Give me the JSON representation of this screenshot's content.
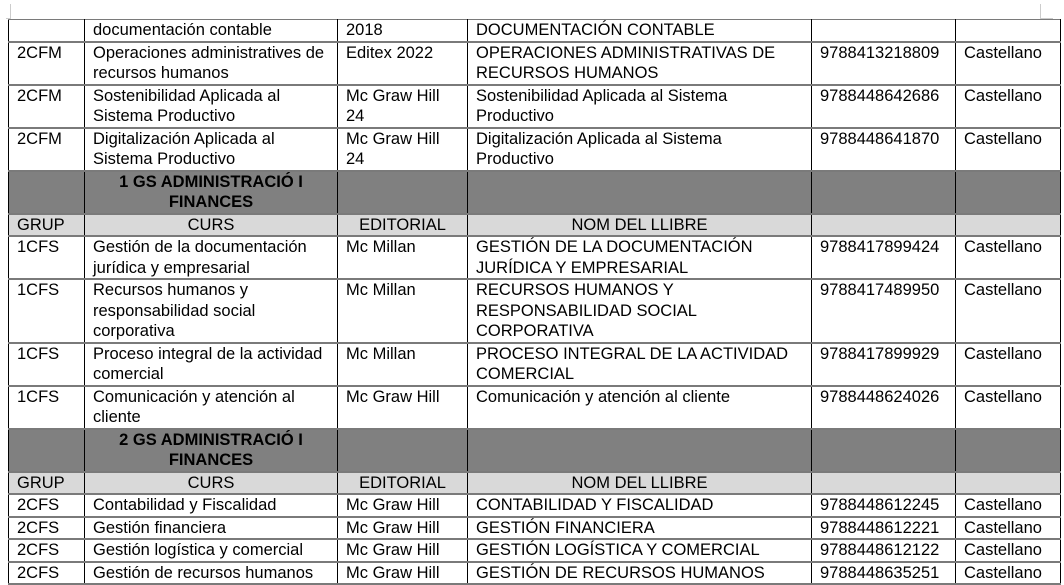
{
  "table": {
    "rows": [
      {
        "type": "data",
        "cells": [
          "",
          "documentación contable",
          "2018",
          "DOCUMENTACIÓN CONTABLE",
          "",
          ""
        ]
      },
      {
        "type": "data",
        "cells": [
          "2CFM",
          "Operaciones administratives de recursos humanos",
          "Editex 2022",
          "OPERACIONES ADMINISTRATIVAS DE RECURSOS HUMANOS",
          "9788413218809",
          "Castellano"
        ]
      },
      {
        "type": "data",
        "cells": [
          "2CFM",
          "Sostenibilidad Aplicada al Sistema Productivo",
          "Mc Graw Hill 24",
          "Sostenibilidad Aplicada al Sistema Productivo",
          "9788448642686",
          "Castellano"
        ]
      },
      {
        "type": "data",
        "cells": [
          "2CFM",
          "Digitalización Aplicada al Sistema Productivo",
          "Mc Graw Hill 24",
          "Digitalización Aplicada al Sistema Productivo",
          "9788448641870",
          "Castellano"
        ]
      },
      {
        "type": "section",
        "cells": [
          "",
          "1 GS ADMINISTRACIÓ I FINANCES",
          "",
          "",
          "",
          ""
        ]
      },
      {
        "type": "hdr",
        "cells": [
          "GRUP",
          "CURS",
          "EDITORIAL",
          "NOM DEL LLIBRE",
          "",
          ""
        ]
      },
      {
        "type": "data",
        "cells": [
          "1CFS",
          "Gestión de la documentación jurídica y empresarial",
          "Mc Millan",
          "GESTIÓN DE LA DOCUMENTACIÓN JURÍDICA Y EMPRESARIAL",
          "9788417899424",
          "Castellano"
        ]
      },
      {
        "type": "data",
        "cells": [
          "1CFS",
          "Recursos humanos y responsabilidad social corporativa",
          "Mc Millan",
          "RECURSOS HUMANOS Y RESPONSABILIDAD SOCIAL CORPORATIVA",
          "9788417489950",
          "Castellano"
        ]
      },
      {
        "type": "data",
        "cells": [
          "1CFS",
          "Proceso integral de la actividad comercial",
          "Mc Millan",
          "PROCESO INTEGRAL DE LA ACTIVIDAD COMERCIAL",
          "9788417899929",
          "Castellano"
        ]
      },
      {
        "type": "data",
        "cells": [
          "1CFS",
          "Comunicación y atención al cliente",
          "Mc Graw Hill",
          "Comunicación y atención al cliente",
          "9788448624026",
          "Castellano"
        ]
      },
      {
        "type": "section",
        "cells": [
          "",
          "2 GS ADMINISTRACIÓ I FINANCES",
          "",
          "",
          "",
          ""
        ]
      },
      {
        "type": "hdr",
        "cells": [
          "GRUP",
          "CURS",
          "EDITORIAL",
          "NOM DEL LLIBRE",
          "",
          ""
        ]
      },
      {
        "type": "data",
        "cells": [
          "2CFS",
          "Contabilidad y Fiscalidad",
          "Mc Graw Hill",
          "CONTABILIDAD Y FISCALIDAD",
          "9788448612245",
          "Castellano"
        ]
      },
      {
        "type": "data",
        "cells": [
          "2CFS",
          "Gestión financiera",
          "Mc Graw Hill",
          "GESTIÓN FINANCIERA",
          "9788448612221",
          "Castellano"
        ]
      },
      {
        "type": "data",
        "cells": [
          "2CFS",
          "Gestión logística y comercial",
          "Mc Graw Hill",
          "GESTIÓN LOGÍSTICA Y COMERCIAL",
          "9788448612122",
          "Castellano"
        ]
      },
      {
        "type": "data",
        "cells": [
          "2CFS",
          "Gestión de recursos humanos",
          "Mc Graw Hill",
          "GESTIÓN DE RECURSOS HUMANOS",
          "9788448635251",
          "Castellano"
        ]
      }
    ]
  },
  "colors": {
    "section_bg": "#808080",
    "header_bg": "#d9d9d9"
  }
}
